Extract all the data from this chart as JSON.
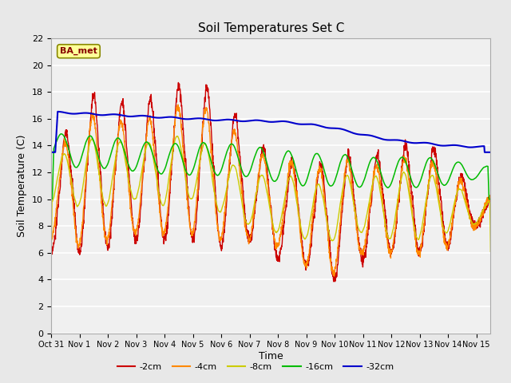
{
  "title": "Soil Temperatures Set C",
  "xlabel": "Time",
  "ylabel": "Soil Temperature (C)",
  "ylim": [
    0,
    22
  ],
  "yticks": [
    0,
    2,
    4,
    6,
    8,
    10,
    12,
    14,
    16,
    18,
    20,
    22
  ],
  "xlim": [
    0,
    15.5
  ],
  "xtick_labels": [
    "Oct 31",
    "Nov 1",
    "Nov 2",
    "Nov 3",
    "Nov 4",
    "Nov 5",
    "Nov 6",
    "Nov 7",
    "Nov 8",
    "Nov 9",
    "Nov 10",
    "Nov 11",
    "Nov 12",
    "Nov 13",
    "Nov 14",
    "Nov 15"
  ],
  "xtick_positions": [
    0,
    1,
    2,
    3,
    4,
    5,
    6,
    7,
    8,
    9,
    10,
    11,
    12,
    13,
    14,
    15
  ],
  "series_colors": [
    "#cc0000",
    "#ff8800",
    "#cccc00",
    "#00bb00",
    "#0000cc"
  ],
  "series_labels": [
    "-2cm",
    "-4cm",
    "-8cm",
    "-16cm",
    "-32cm"
  ],
  "bg_color": "#e8e8e8",
  "plot_bg": "#f0f0f0",
  "grid_color": "#ffffff",
  "annotation_text": "BA_met",
  "annotation_box_color": "#ffff99",
  "annotation_text_color": "#880000",
  "figsize": [
    6.4,
    4.8
  ],
  "dpi": 100
}
